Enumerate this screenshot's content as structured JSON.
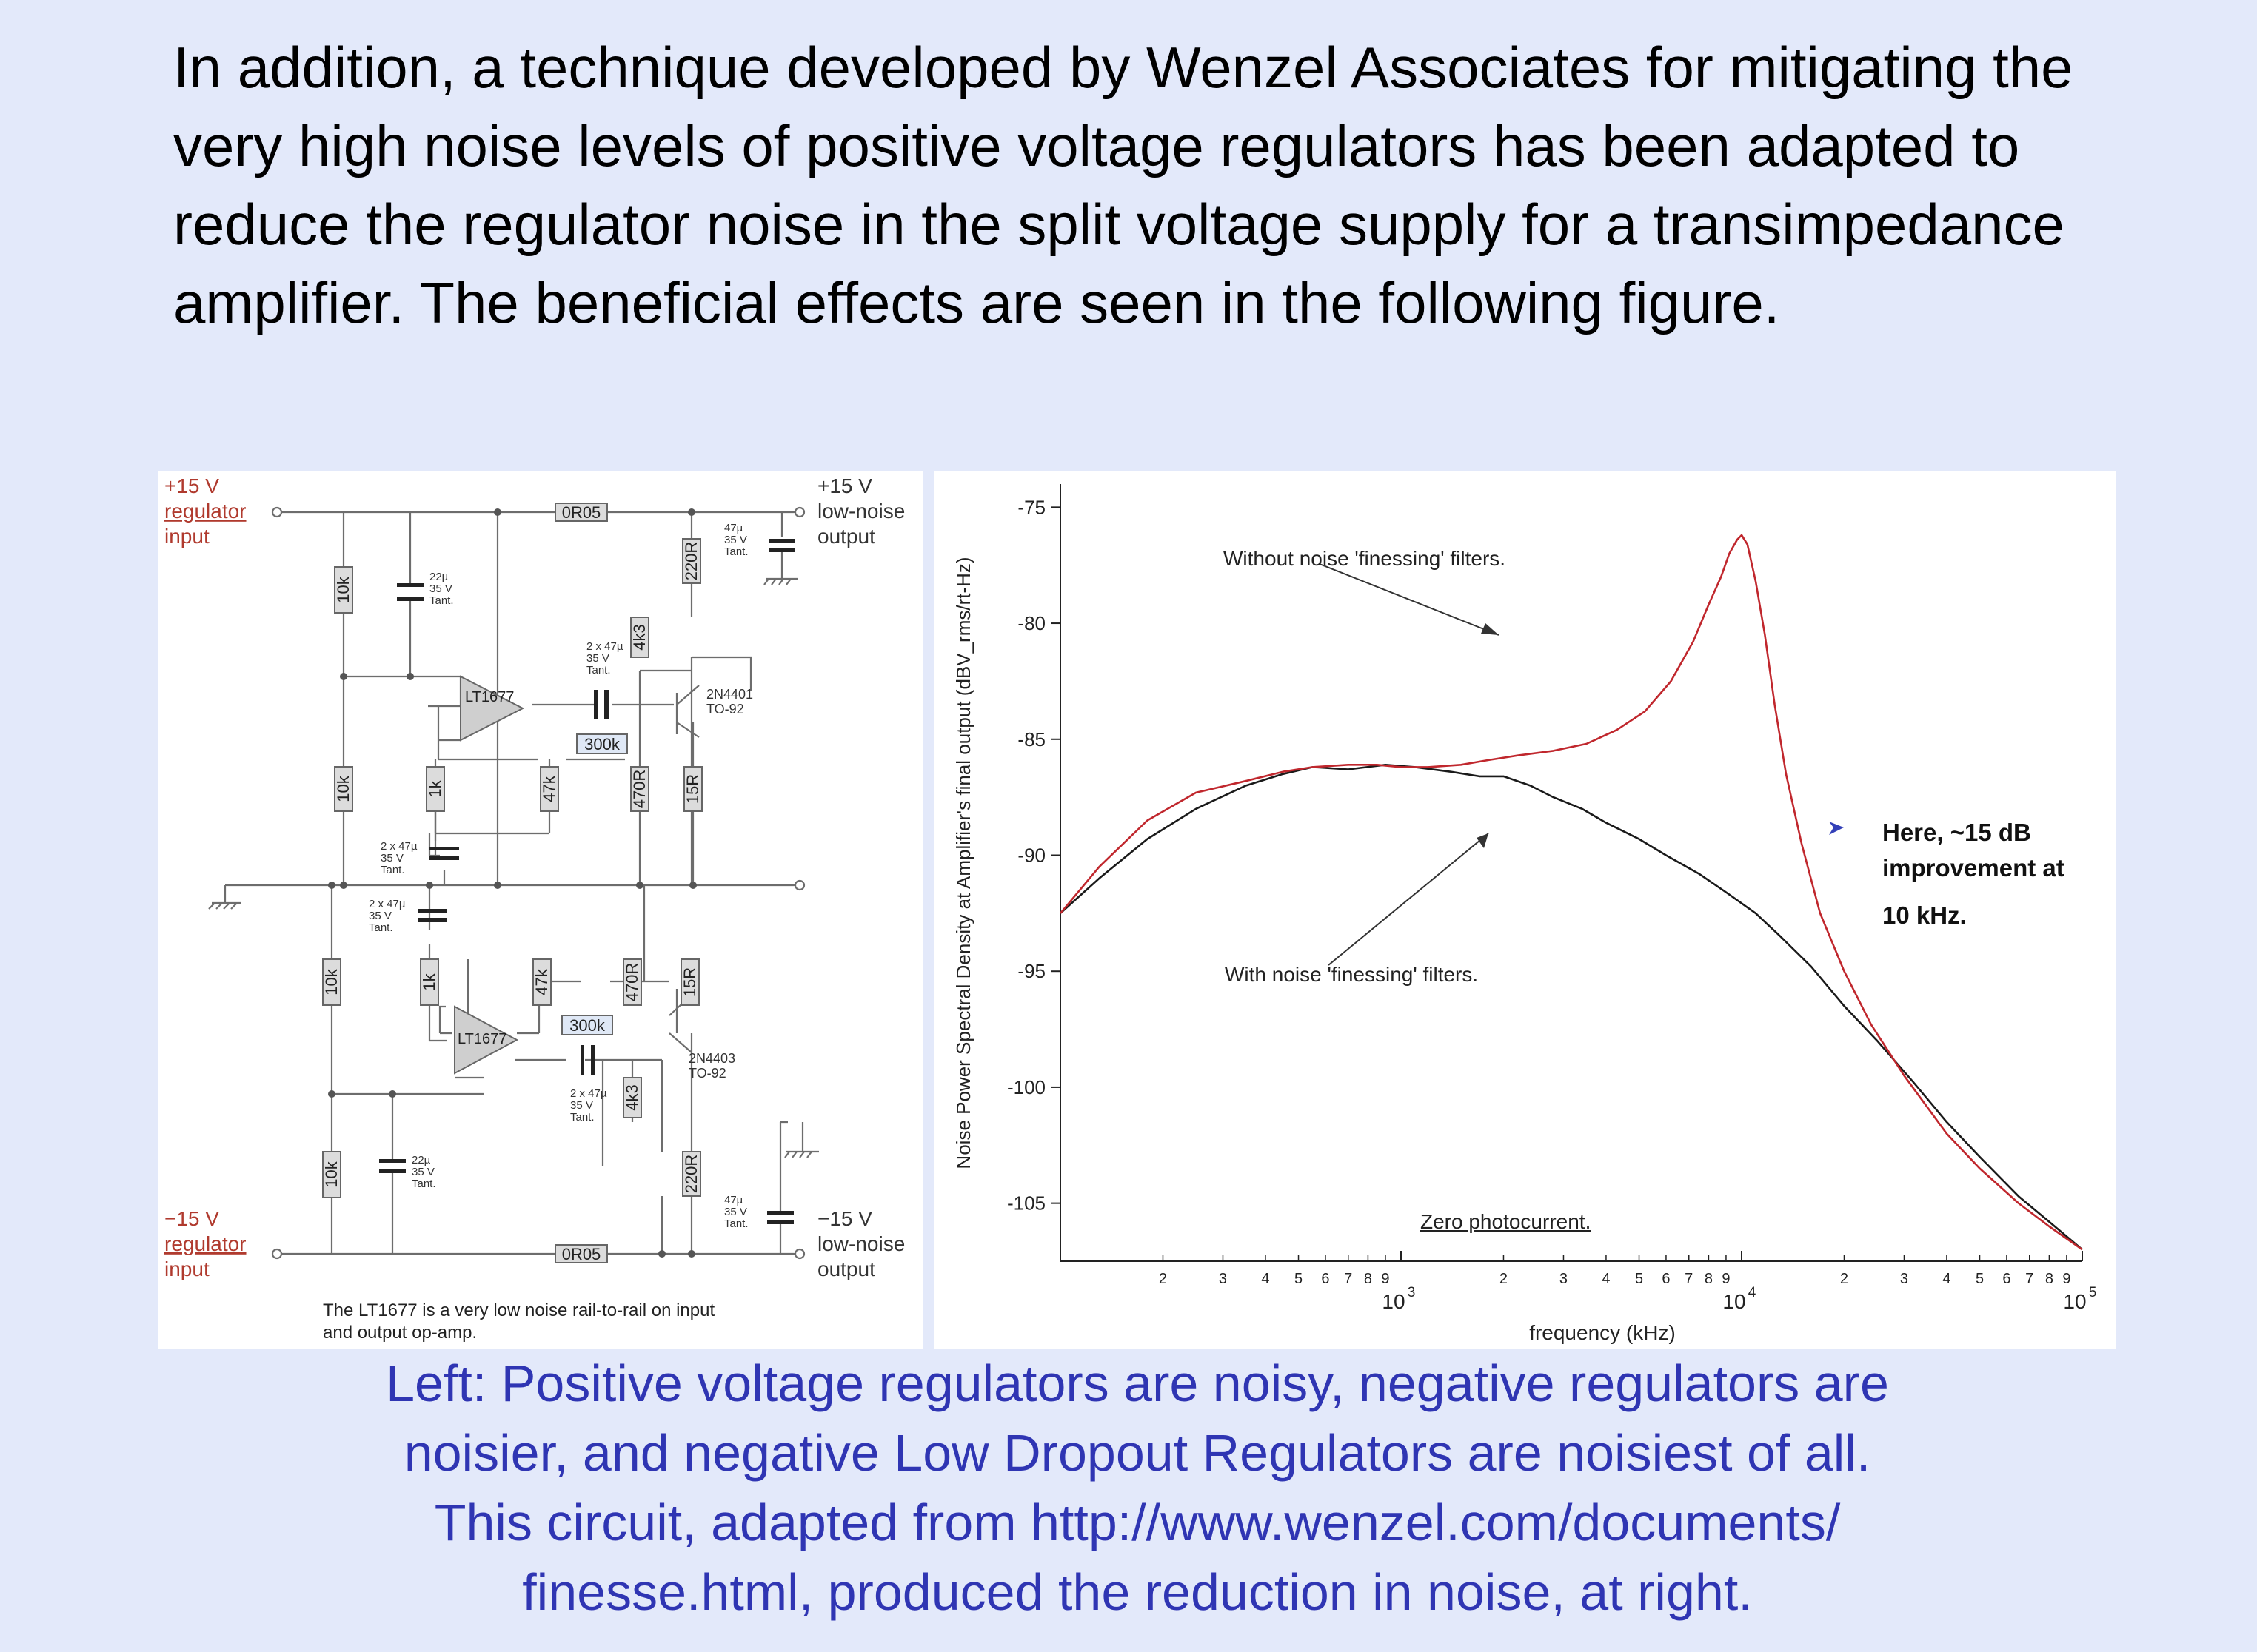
{
  "intro": {
    "text": "In addition, a technique developed by Wenzel Associates for mitigating the very high noise levels of positive voltage regulators has been adapted to reduce the regulator noise in the split voltage supply for a transimpedance amplifier.  The beneficial effects are seen in the following figure."
  },
  "circuit": {
    "top_in": [
      "+15 V",
      "regulator",
      "input"
    ],
    "top_out": [
      "+15 V",
      "low-noise",
      "output"
    ],
    "bot_in": [
      "−15 V",
      "regulator",
      "input"
    ],
    "bot_out": [
      "−15 V",
      "low-noise",
      "output"
    ],
    "res_0r05": "0R05",
    "res_10k": "10k",
    "res_1k": "1k",
    "res_47k": "47k",
    "res_300k": "300k",
    "res_470r": "470R",
    "res_15r": "15R",
    "res_220r": "220R",
    "res_4k3": "4k3",
    "opamp": "LT1677",
    "cap_22": [
      "22µ",
      "35 V",
      "Tant."
    ],
    "cap_47": [
      "47µ",
      "35 V",
      "Tant."
    ],
    "cap_2x47": [
      "2 x 47µ",
      "35 V",
      "Tant."
    ],
    "transistor_top": [
      "2N4401",
      "TO-92"
    ],
    "transistor_bot": [
      "2N4403",
      "TO-92"
    ],
    "note": [
      "The LT1677 is a very low noise rail-to-rail on input",
      "and output op-amp."
    ]
  },
  "chart_data": {
    "type": "line",
    "ylabel": "Noise Power Spectral Density at Amplifier's final output (dBV_rms/rt-Hz)",
    "xlabel": "frequency (kHz)",
    "xscale": "log",
    "xlim": [
      100,
      100000
    ],
    "ylim": [
      -107.5,
      -74
    ],
    "yticks": [
      -75,
      -80,
      -85,
      -90,
      -95,
      -100,
      -105
    ],
    "xmajor": [
      {
        "value": 1000,
        "base": "10",
        "exp": "3"
      },
      {
        "value": 10000,
        "base": "10",
        "exp": "4"
      },
      {
        "value": 100000,
        "base": "10",
        "exp": "5"
      }
    ],
    "grid": false,
    "series": [
      {
        "name": "Without noise 'finessing' filters.",
        "color": "#c0272d",
        "x": [
          100,
          130,
          180,
          250,
          350,
          450,
          550,
          700,
          850,
          1000,
          1200,
          1500,
          1800,
          2200,
          2800,
          3500,
          4300,
          5200,
          6200,
          7200,
          8000,
          8700,
          9200,
          9700,
          10000,
          10400,
          11000,
          11700,
          12500,
          13500,
          15000,
          17000,
          20000,
          24000,
          30000,
          40000,
          50000,
          65000,
          80000,
          100000
        ],
        "y": [
          -92.5,
          -90.5,
          -88.5,
          -87.3,
          -86.8,
          -86.4,
          -86.2,
          -86.1,
          -86.1,
          -86.2,
          -86.2,
          -86.1,
          -85.9,
          -85.7,
          -85.5,
          -85.2,
          -84.6,
          -83.8,
          -82.5,
          -80.8,
          -79.2,
          -78.0,
          -77.0,
          -76.4,
          -76.2,
          -76.6,
          -78.2,
          -80.5,
          -83.5,
          -86.5,
          -89.5,
          -92.5,
          -95.0,
          -97.3,
          -99.5,
          -102.0,
          -103.5,
          -105.0,
          -106.0,
          -107.0
        ]
      },
      {
        "name": "With noise 'finessing' filters.",
        "color": "#1a1a1a",
        "x": [
          100,
          130,
          180,
          250,
          350,
          450,
          550,
          700,
          900,
          1100,
          1400,
          1700,
          2000,
          2400,
          2800,
          3400,
          4000,
          5000,
          6000,
          7500,
          9000,
          11000,
          13000,
          16000,
          20000,
          25000,
          32000,
          40000,
          50000,
          65000,
          80000,
          100000
        ],
        "y": [
          -92.5,
          -91.0,
          -89.3,
          -88.0,
          -87.0,
          -86.5,
          -86.2,
          -86.3,
          -86.1,
          -86.2,
          -86.4,
          -86.6,
          -86.6,
          -87.0,
          -87.5,
          -88.0,
          -88.6,
          -89.3,
          -90.0,
          -90.8,
          -91.6,
          -92.5,
          -93.5,
          -94.8,
          -96.5,
          -98.0,
          -99.8,
          -101.5,
          -103.0,
          -104.7,
          -105.8,
          -107.0
        ]
      }
    ],
    "annotations": {
      "without": "Without noise 'finessing' filters.",
      "with": "With noise 'finessing' filters.",
      "zero": "Zero photocurrent.",
      "note": [
        "Here, ~15 dB",
        "improvement at",
        "10 kHz."
      ]
    }
  },
  "caption": {
    "lines": [
      "Left: Positive voltage regulators are noisy, negative regulators are",
      "noisier, and negative Low Dropout Regulators are noisiest of all.",
      "This circuit, adapted from http://www.wenzel.com/documents/",
      "finesse.html,  produced the reduction in noise, at right."
    ]
  },
  "colors": {
    "background": "#e3e9fa",
    "caption": "#2f35b3",
    "input_label": "#b03a2e",
    "resistor_fill": "#dcdcdc",
    "opamp_fill": "#cfcfcf"
  }
}
